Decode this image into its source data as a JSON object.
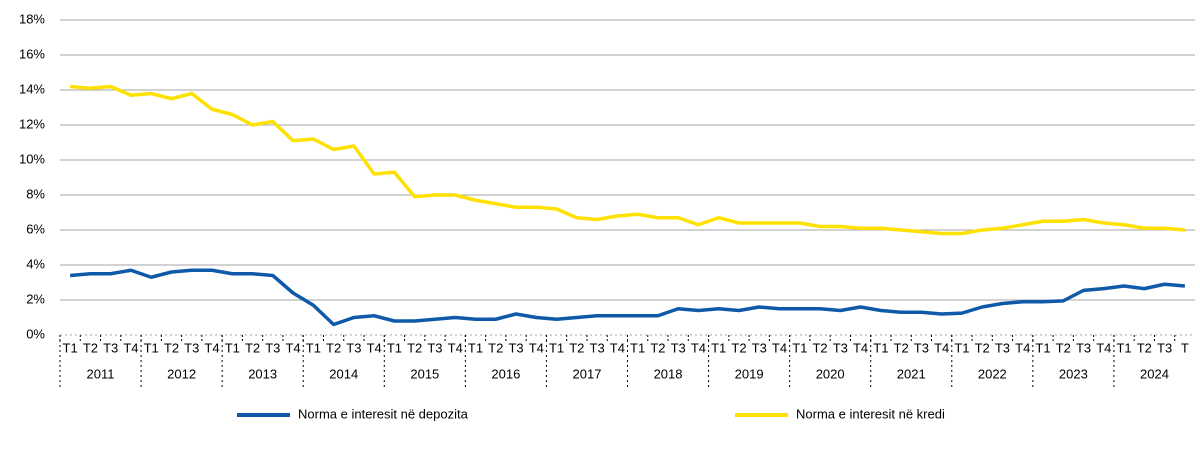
{
  "chart_data": {
    "type": "line",
    "categories": [
      "T1",
      "T2",
      "T3",
      "T4",
      "T1",
      "T2",
      "T3",
      "T4",
      "T1",
      "T2",
      "T3",
      "T4",
      "T1",
      "T2",
      "T3",
      "T4",
      "T1",
      "T2",
      "T3",
      "T4",
      "T1",
      "T2",
      "T3",
      "T4",
      "T1",
      "T2",
      "T3",
      "T4",
      "T1",
      "T2",
      "T3",
      "T4",
      "T1",
      "T2",
      "T3",
      "T4",
      "T1",
      "T2",
      "T3",
      "T4",
      "T1",
      "T2",
      "T3",
      "T4",
      "T1",
      "T2",
      "T3",
      "T4",
      "T1",
      "T2",
      "T3",
      "T4",
      "T1",
      "T2",
      "T3",
      "T"
    ],
    "years": [
      "2011",
      "2012",
      "2013",
      "2014",
      "2015",
      "2016",
      "2017",
      "2018",
      "2019",
      "2020",
      "2021",
      "2022",
      "2023",
      "2024"
    ],
    "series": [
      {
        "name": "Norma e interesit në depozita",
        "color": "#0f5aa8",
        "values": [
          3.4,
          3.5,
          3.5,
          3.7,
          3.3,
          3.6,
          3.7,
          3.7,
          3.5,
          3.5,
          3.4,
          2.4,
          1.7,
          0.6,
          1.0,
          1.1,
          0.8,
          0.8,
          0.9,
          1.0,
          0.9,
          0.9,
          1.2,
          1.0,
          0.9,
          1.0,
          1.1,
          1.1,
          1.1,
          1.1,
          1.5,
          1.4,
          1.5,
          1.4,
          1.6,
          1.5,
          1.5,
          1.5,
          1.4,
          1.6,
          1.4,
          1.3,
          1.3,
          1.2,
          1.25,
          1.6,
          1.8,
          1.9,
          1.9,
          1.95,
          2.55,
          2.65,
          2.8,
          2.65,
          2.9,
          2.8
        ]
      },
      {
        "name": "Norma e interesit në kredi",
        "color": "#ffe100",
        "values": [
          14.2,
          14.1,
          14.2,
          13.7,
          13.8,
          13.5,
          13.8,
          12.9,
          12.6,
          12.0,
          12.2,
          11.1,
          11.2,
          10.6,
          10.8,
          9.2,
          9.3,
          7.9,
          8.0,
          8.0,
          7.7,
          7.5,
          7.3,
          7.3,
          7.2,
          6.7,
          6.6,
          6.8,
          6.9,
          6.7,
          6.7,
          6.3,
          6.7,
          6.4,
          6.4,
          6.4,
          6.4,
          6.2,
          6.2,
          6.1,
          6.1,
          6.0,
          5.9,
          5.8,
          5.8,
          6.0,
          6.1,
          6.3,
          6.5,
          6.5,
          6.6,
          6.4,
          6.3,
          6.1,
          6.1,
          6.0
        ]
      }
    ],
    "ylim": [
      0,
      18
    ],
    "yticks": [
      {
        "value": 0,
        "label": "0%"
      },
      {
        "value": 2,
        "label": "2%"
      },
      {
        "value": 4,
        "label": "4%"
      },
      {
        "value": 6,
        "label": "6%"
      },
      {
        "value": 8,
        "label": "8%"
      },
      {
        "value": 10,
        "label": "10%"
      },
      {
        "value": 12,
        "label": "12%"
      },
      {
        "value": 14,
        "label": "14%"
      },
      {
        "value": 16,
        "label": "16%"
      },
      {
        "value": 18,
        "label": "18%"
      }
    ],
    "grid": true
  }
}
